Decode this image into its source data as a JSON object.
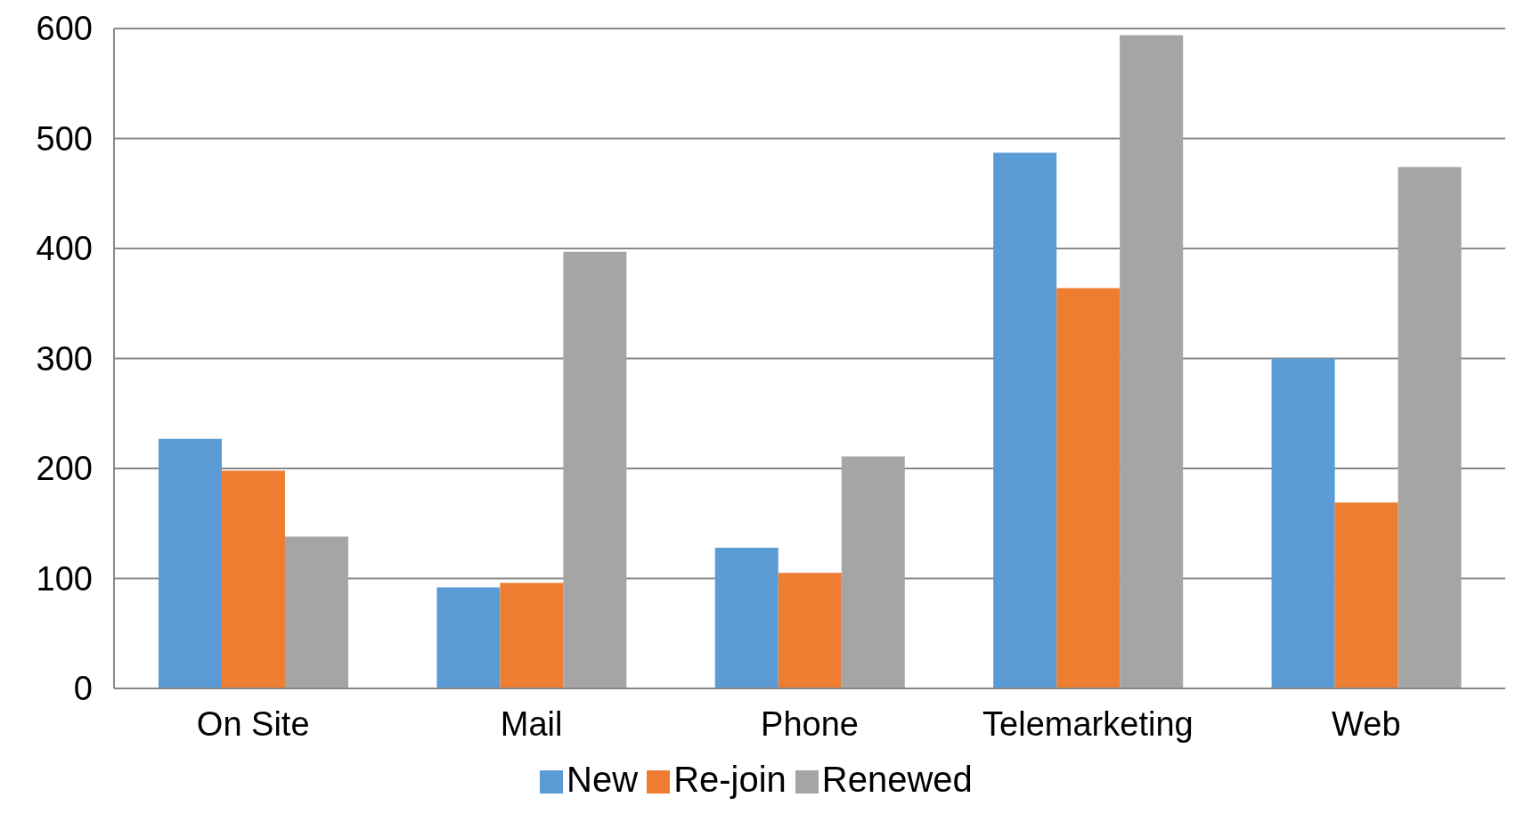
{
  "chart_data": {
    "type": "bar",
    "categories": [
      "On Site",
      "Mail",
      "Phone",
      "Telemarketing",
      "Web"
    ],
    "series": [
      {
        "name": "New",
        "color": "#5b9bd5",
        "values": [
          227,
          92,
          128,
          487,
          300
        ]
      },
      {
        "name": "Re-join",
        "color": "#ed7d31",
        "values": [
          198,
          96,
          105,
          364,
          169
        ]
      },
      {
        "name": "Renewed",
        "color": "#a5a5a5",
        "values": [
          138,
          397,
          211,
          594,
          474
        ]
      }
    ],
    "ylim": [
      0,
      600
    ],
    "yticks": [
      0,
      100,
      200,
      300,
      400,
      500,
      600
    ],
    "grid": "y",
    "legend": "bottom"
  }
}
